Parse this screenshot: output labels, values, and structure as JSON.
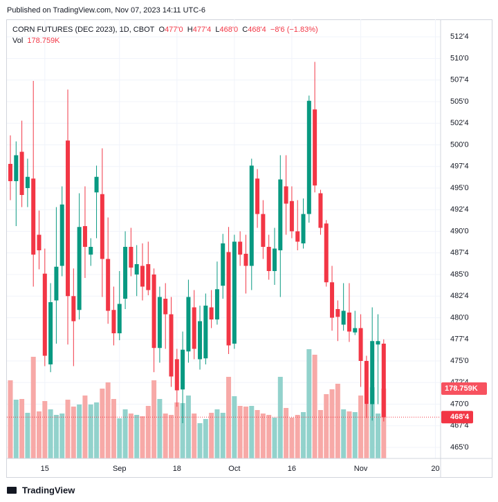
{
  "published": "Published on TradingView.com, Nov 07, 2023 14:11 UTC-6",
  "footer": "TradingView",
  "chart_data": {
    "type": "candlestick",
    "title": "CORN FUTURES (DEC 2023), 1D, CBOT",
    "ohlc_legend": [
      {
        "label": "O",
        "value": "477'0"
      },
      {
        "label": "H",
        "value": "477'4"
      },
      {
        "label": "L",
        "value": "468'0"
      },
      {
        "label": "C",
        "value": "468'4"
      }
    ],
    "change": "−8'6 (−1.83%)",
    "volume_label": "Vol",
    "volume_value": "178.759K",
    "price_tag": "468'4",
    "volume_tag": "178.759K",
    "up_color": "#089981",
    "down_color": "#f23645",
    "volume_up_color": "#92d2cc",
    "volume_down_color": "#f7a9a7",
    "open": [
      497.8,
      495.8,
      499.2,
      495.0,
      496.1,
      489.6,
      485.1,
      474.6,
      482.0,
      486.0,
      500.5,
      482.5,
      480.9,
      490.6,
      487.3,
      494.5,
      494.3,
      486.8,
      480.9,
      478.2,
      482.2,
      488.2,
      485.0,
      486.0,
      486.2,
      485.0,
      476.5,
      482.2,
      480.4,
      475.2,
      471.7,
      476.1,
      481.2,
      475.2,
      475.3,
      481.2,
      479.8,
      483.7,
      487.6,
      477.0,
      488.8,
      487.4,
      486.0,
      496.1,
      492.0,
      488.2,
      485.4,
      487.8,
      495.2,
      493.5,
      490.0,
      488.6,
      492.0,
      504.1,
      494.4,
      490.9,
      484.1,
      481.0,
      479.2,
      480.6,
      478.3,
      478.8,
      475.0,
      470.0,
      476.9,
      477.0
    ],
    "high": [
      501.1,
      500.4,
      502.8,
      498.4,
      507.4,
      492.4,
      488.0,
      484.0,
      492.8,
      495.2,
      506.4,
      485.7,
      494.4,
      495.2,
      489.2,
      497.6,
      499.6,
      491.6,
      483.6,
      485.4,
      490.0,
      490.4,
      488.4,
      488.6,
      488.8,
      485.7,
      483.6,
      484.0,
      482.4,
      476.4,
      478.4,
      484.4,
      483.2,
      481.4,
      482.8,
      483.2,
      486.5,
      489.7,
      490.5,
      489.6,
      490.0,
      489.6,
      498.4,
      497.2,
      493.6,
      489.6,
      490.4,
      498.8,
      498.8,
      495.2,
      493.6,
      493.8,
      505.7,
      509.6,
      494.8,
      491.3,
      486.0,
      482.0,
      484.0,
      484.0,
      480.8,
      480.4,
      475.6,
      481.2,
      480.4,
      477.5
    ],
    "low": [
      493.6,
      490.6,
      492.8,
      492.8,
      483.6,
      485.6,
      474.4,
      473.7,
      477.0,
      484.8,
      476.9,
      474.4,
      479.8,
      484.6,
      486.0,
      489.2,
      482.4,
      479.3,
      476.8,
      477.4,
      481.0,
      484.8,
      482.5,
      482.0,
      482.6,
      473.7,
      474.8,
      476.4,
      472.0,
      469.7,
      467.8,
      474.8,
      475.2,
      474.0,
      474.6,
      478.8,
      479.2,
      482.2,
      475.8,
      476.4,
      486.0,
      482.8,
      483.2,
      490.4,
      486.8,
      484.4,
      483.8,
      482.4,
      489.6,
      489.2,
      487.8,
      488.0,
      491.0,
      494.5,
      489.6,
      483.6,
      478.5,
      477.3,
      478.5,
      477.2,
      478.0,
      472.0,
      468.4,
      468.1,
      470.0,
      468.0
    ],
    "close": [
      495.8,
      498.8,
      494.2,
      496.3,
      487.3,
      487.8,
      475.6,
      481.8,
      485.9,
      493.1,
      482.5,
      479.6,
      490.5,
      488.2,
      488.2,
      496.3,
      486.8,
      480.8,
      478.2,
      481.6,
      488.2,
      485.8,
      486.2,
      483.6,
      483.2,
      476.5,
      482.4,
      480.4,
      473.2,
      471.6,
      476.3,
      482.4,
      476.4,
      479.6,
      481.4,
      479.8,
      483.3,
      488.6,
      476.8,
      488.8,
      487.3,
      486.0,
      497.6,
      492.0,
      488.2,
      485.4,
      488.0,
      496.0,
      493.2,
      490.0,
      488.8,
      492.0,
      505.1,
      495.3,
      490.4,
      484.1,
      480.0,
      480.1,
      480.8,
      478.4,
      478.8,
      475.0,
      470.0,
      477.3,
      477.3,
      468.5
    ],
    "volume": [
      200000,
      150450,
      152200,
      116800,
      260200,
      120400,
      146900,
      125700,
      111500,
      115000,
      150400,
      132800,
      138100,
      161100,
      138100,
      143400,
      178800,
      194700,
      152200,
      102700,
      125700,
      115000,
      111500,
      108000,
      134500,
      200000,
      152200,
      115000,
      111500,
      143400,
      141600,
      161100,
      115000,
      90300,
      100900,
      116800,
      125700,
      116800,
      208900,
      159300,
      134500,
      132800,
      134500,
      123900,
      115000,
      111500,
      104400,
      208900,
      129200,
      104400,
      111500,
      118600,
      279700,
      265500,
      123900,
      164600,
      177000,
      191200,
      125700,
      120400,
      118600,
      161100,
      138100,
      182300,
      115000,
      178759
    ],
    "xlim": [
      -0.6,
      74.9
    ],
    "xticks": [
      {
        "value": 6,
        "label": "15"
      },
      {
        "value": 19,
        "label": "Sep"
      },
      {
        "value": 29,
        "label": "18"
      },
      {
        "value": 39,
        "label": "Oct"
      },
      {
        "value": 49,
        "label": "16"
      },
      {
        "value": 61,
        "label": "Nov"
      },
      {
        "value": 74,
        "label": "20"
      }
    ],
    "ylim": [
      463.72,
      514.52
    ],
    "yticks": [
      {
        "value": 465,
        "label": "465'0"
      },
      {
        "value": 467.5,
        "label": "467'4"
      },
      {
        "value": 470,
        "label": "470'0"
      },
      {
        "value": 472.5,
        "label": "472'4"
      },
      {
        "value": 475,
        "label": "475'0"
      },
      {
        "value": 477.5,
        "label": "477'4"
      },
      {
        "value": 480,
        "label": "480'0"
      },
      {
        "value": 482.5,
        "label": "482'4"
      },
      {
        "value": 485,
        "label": "485'0"
      },
      {
        "value": 487.5,
        "label": "487'4"
      },
      {
        "value": 490,
        "label": "490'0"
      },
      {
        "value": 492.5,
        "label": "492'4"
      },
      {
        "value": 495,
        "label": "495'0"
      },
      {
        "value": 497.5,
        "label": "497'4"
      },
      {
        "value": 500,
        "label": "500'0"
      },
      {
        "value": 502.5,
        "label": "502'4"
      },
      {
        "value": 505,
        "label": "505'0"
      },
      {
        "value": 507.5,
        "label": "507'4"
      },
      {
        "value": 510,
        "label": "510'0"
      },
      {
        "value": 512.5,
        "label": "512'4"
      }
    ],
    "y2lim": [
      0,
      1124000
    ],
    "grid": true
  }
}
